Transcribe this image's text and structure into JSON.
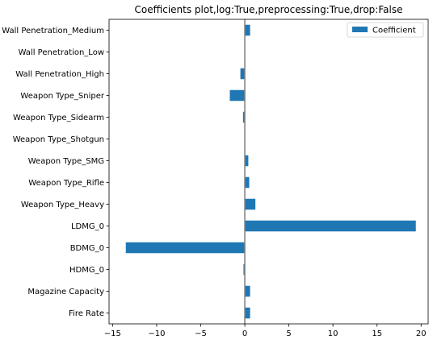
{
  "chart_data": {
    "type": "bar",
    "orientation": "horizontal",
    "title": "Coefficients plot,log:True,preprocessing:True,drop:False",
    "xlabel": "",
    "ylabel": "",
    "categories": [
      "Fire Rate",
      "Magazine Capacity",
      "HDMG_0",
      "BDMG_0",
      "LDMG_0",
      "Weapon Type_Heavy",
      "Weapon Type_Rifle",
      "Weapon Type_SMG",
      "Weapon Type_Shotgun",
      "Weapon Type_Sidearm",
      "Weapon Type_Sniper",
      "Wall Penetration_High",
      "Wall Penetration_Low",
      "Wall Penetration_Medium"
    ],
    "series": [
      {
        "name": "Coefficient",
        "color": "#1f77b4",
        "values": [
          0.6,
          0.6,
          -0.15,
          -13.5,
          19.4,
          1.2,
          0.5,
          0.4,
          0.0,
          -0.2,
          -1.7,
          -0.5,
          0.0,
          0.6
        ]
      }
    ],
    "xlim": [
      -15.4,
      20.8
    ],
    "xticks": [
      -15,
      -10,
      -5,
      0,
      5,
      10,
      15,
      20
    ],
    "xtick_labels": [
      "−15",
      "−10",
      "−5",
      "0",
      "5",
      "10",
      "15",
      "20"
    ],
    "zero_line": true,
    "zero_line_color": "#808080",
    "grid": false,
    "legend_position": "top-right"
  }
}
